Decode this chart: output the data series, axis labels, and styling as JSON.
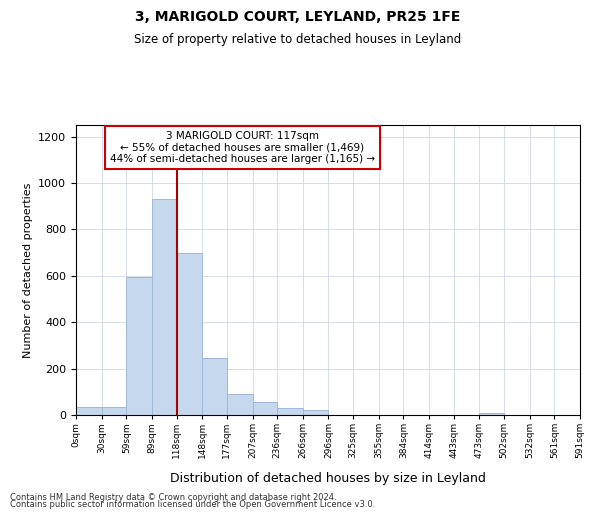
{
  "title1": "3, MARIGOLD COURT, LEYLAND, PR25 1FE",
  "title2": "Size of property relative to detached houses in Leyland",
  "xlabel": "Distribution of detached houses by size in Leyland",
  "ylabel": "Number of detached properties",
  "bin_edges": [
    0,
    30,
    59,
    89,
    118,
    148,
    177,
    207,
    236,
    266,
    296,
    325,
    355,
    384,
    414,
    443,
    473,
    502,
    532,
    561,
    591
  ],
  "bar_heights": [
    35,
    35,
    595,
    930,
    700,
    245,
    90,
    55,
    30,
    20,
    0,
    0,
    0,
    0,
    0,
    0,
    10,
    0,
    0,
    0
  ],
  "bar_color": "#c5d8ee",
  "bar_edgecolor": "#a0b8d8",
  "vline_x": 118,
  "vline_color": "#aa0000",
  "annotation_line1": "3 MARIGOLD COURT: 117sqm",
  "annotation_line2": "← 55% of detached houses are smaller (1,469)",
  "annotation_line3": "44% of semi-detached houses are larger (1,165) →",
  "annotation_box_edgecolor": "#cc0000",
  "ylim": [
    0,
    1250
  ],
  "yticks": [
    0,
    200,
    400,
    600,
    800,
    1000,
    1200
  ],
  "footer1": "Contains HM Land Registry data © Crown copyright and database right 2024.",
  "footer2": "Contains public sector information licensed under the Open Government Licence v3.0.",
  "bg_color": "#ffffff",
  "grid_color": "#d0d8e8"
}
